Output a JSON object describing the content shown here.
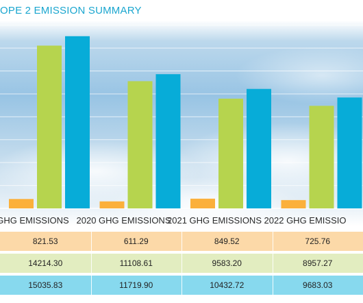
{
  "title": "OPE 2 EMISSION SUMMARY",
  "colors": {
    "series_1": "#fbb03b",
    "series_2": "#b6d44e",
    "series_3": "#07acd8",
    "row_1": "#fcd9a8",
    "row_2": "#e2edc0",
    "row_3": "#87d9ee",
    "grid": "#ffffff",
    "title": "#1aa6cf"
  },
  "chart_data": {
    "type": "bar",
    "title": "OPE 2 EMISSION SUMMARY",
    "categories": [
      "GHG EMISSIONS",
      "2020 GHG EMISSIONS",
      "2021 GHG EMISSIONS",
      "2022 GHG EMISSIO"
    ],
    "series": [
      {
        "values": [
          821.53,
          611.29,
          849.52,
          725.76
        ]
      },
      {
        "values": [
          14214.3,
          11108.61,
          9583.2,
          8957.27
        ]
      },
      {
        "values": [
          15035.83,
          11719.9,
          10432.72,
          9683.03
        ]
      }
    ],
    "ylim": [
      0,
      17000
    ],
    "grid": true,
    "legend": "none"
  },
  "table": {
    "rows": [
      [
        "821.53",
        "611.29",
        "849.52",
        "725.76"
      ],
      [
        "14214.30",
        "11108.61",
        "9583.20",
        "8957.27"
      ],
      [
        "15035.83",
        "11719.90",
        "10432.72",
        "9683.03"
      ]
    ]
  }
}
